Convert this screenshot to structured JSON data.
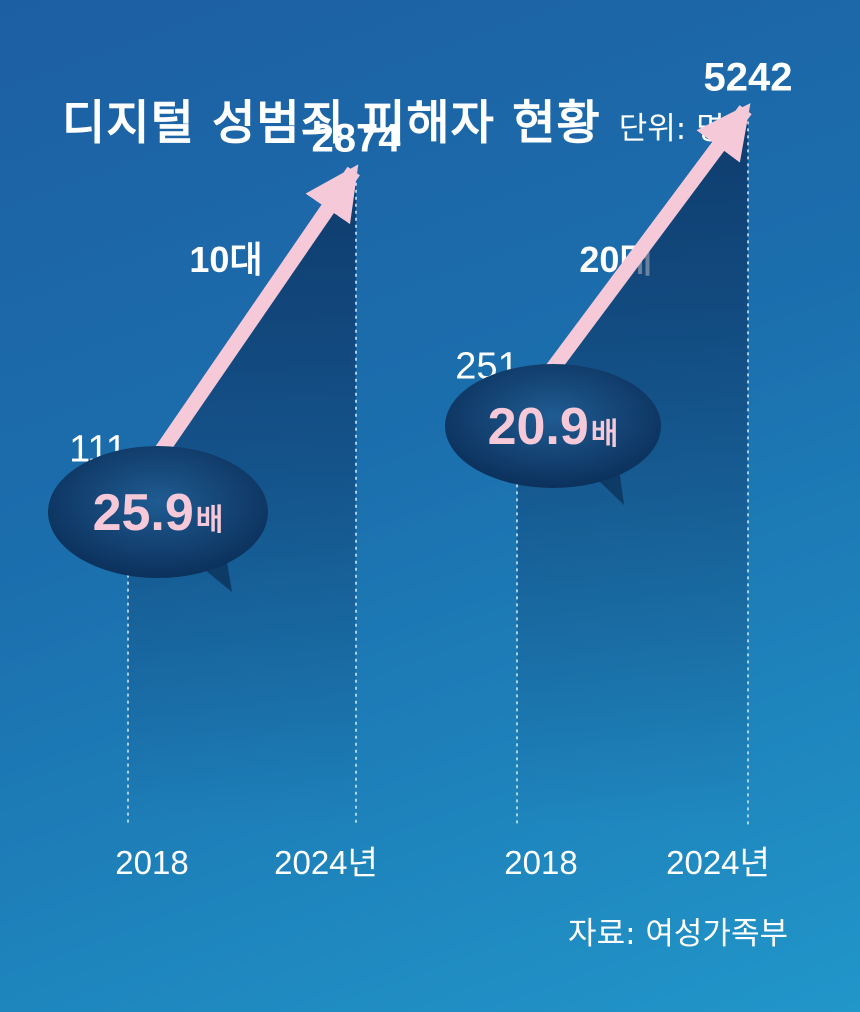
{
  "header": {
    "title": "디지털 성범죄 피해자 현황",
    "unit": "단위: 명"
  },
  "source": "자료: 여성가족부",
  "chart_data": [
    {
      "type": "line",
      "title": "10대",
      "x": [
        "2018",
        "2024년"
      ],
      "values": [
        111,
        2874
      ],
      "value_labels": [
        "111",
        "2874"
      ],
      "growth": {
        "number": "25.9",
        "suffix": "배"
      }
    },
    {
      "type": "line",
      "title": "20대",
      "x": [
        "2018",
        "2024년"
      ],
      "values": [
        251,
        5242
      ],
      "value_labels": [
        "251",
        "5242"
      ],
      "growth": {
        "number": "20.9",
        "suffix": "배"
      }
    }
  ],
  "colors": {
    "arrow": "#f6c9d9",
    "bubble": "#0e3a66",
    "growth_text": "#f6c9d9",
    "text": "#ffffff"
  }
}
